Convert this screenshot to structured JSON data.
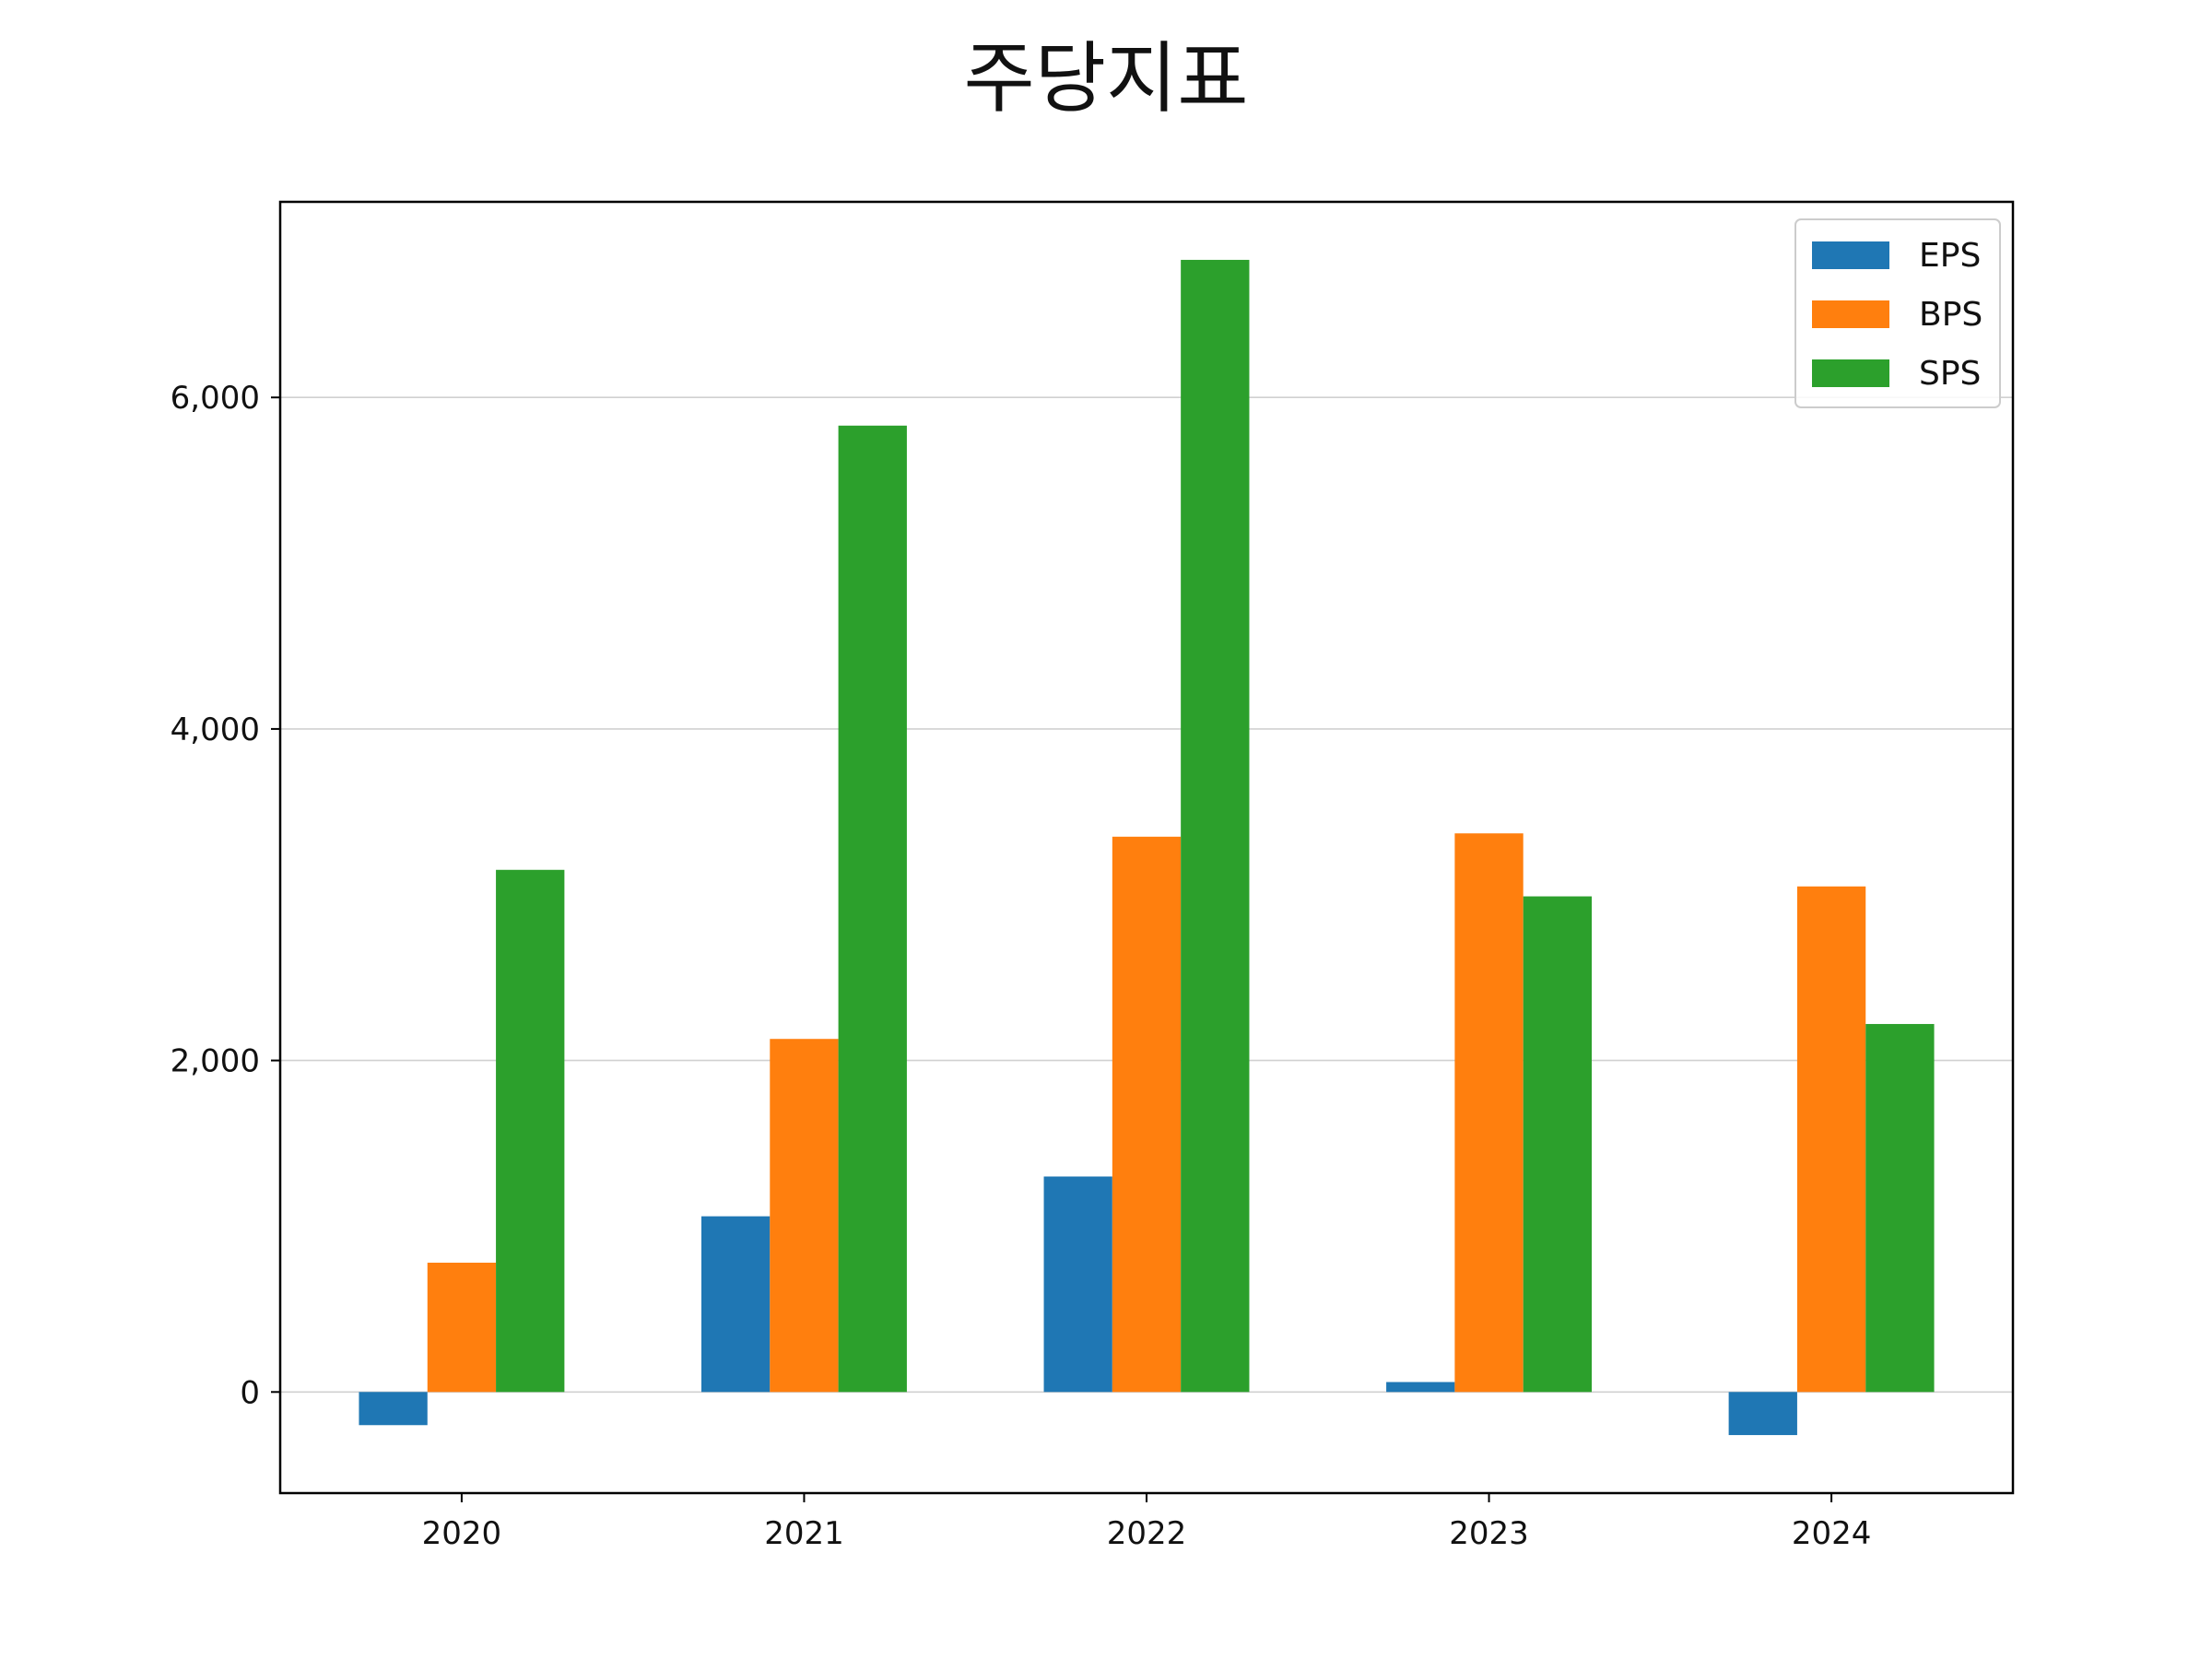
{
  "chart_data": {
    "type": "bar",
    "title": "주당지표",
    "xlabel": "",
    "ylabel": "",
    "categories": [
      "2020",
      "2021",
      "2022",
      "2023",
      "2024"
    ],
    "series": [
      {
        "name": "EPS",
        "color": "#1f77b4",
        "values": [
          -200,
          1060,
          1300,
          60,
          -260
        ]
      },
      {
        "name": "BPS",
        "color": "#ff7f0e",
        "values": [
          780,
          2130,
          3350,
          3370,
          3050
        ]
      },
      {
        "name": "SPS",
        "color": "#2ca02c",
        "values": [
          3150,
          5830,
          6830,
          2990,
          2220
        ]
      }
    ],
    "ylim": [
      -610,
      7180
    ],
    "yticks": [
      0,
      2000,
      4000,
      6000
    ],
    "ytick_labels": [
      "0",
      "2,000",
      "4,000",
      "6,000"
    ],
    "grid": "horizontal",
    "legend_position": "top-right"
  }
}
